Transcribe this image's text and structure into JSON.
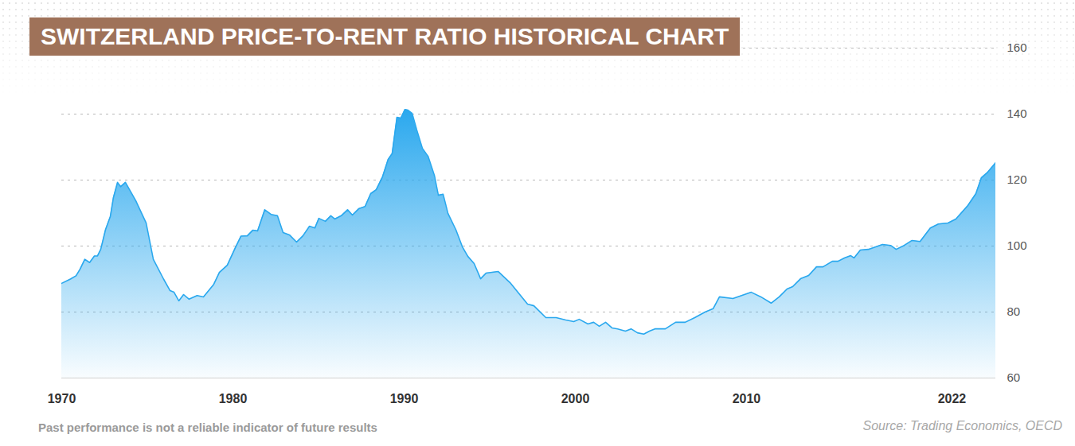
{
  "chart_data": {
    "type": "area",
    "title": "SWITZERLAND PRICE-TO-RENT RATIO HISTORICAL CHART",
    "caption": "Past performance is not a reliable indicator of future results",
    "source": "Source: Trading Economics, OECD",
    "color": "#2aa8ee",
    "grid": true,
    "xlim": [
      1970,
      2024.56
    ],
    "xticks": [
      1970,
      1980,
      1990,
      2000,
      2010,
      2022
    ],
    "ylim": [
      60,
      160
    ],
    "yticks": [
      60,
      80,
      100,
      120,
      140,
      160
    ],
    "x": [
      1970.0,
      1970.51,
      1970.84,
      1971.07,
      1971.35,
      1971.63,
      1971.91,
      1972.09,
      1972.28,
      1972.56,
      1972.84,
      1973.02,
      1973.26,
      1973.44,
      1973.72,
      1974.33,
      1974.93,
      1975.35,
      1975.95,
      1976.33,
      1976.56,
      1976.84,
      1977.12,
      1977.44,
      1977.91,
      1978.28,
      1978.88,
      1979.21,
      1979.67,
      1980.14,
      1980.47,
      1980.84,
      1981.16,
      1981.44,
      1981.86,
      1982.23,
      1982.6,
      1982.93,
      1983.3,
      1983.72,
      1984.09,
      1984.47,
      1984.79,
      1985.02,
      1985.4,
      1985.72,
      1985.95,
      1986.33,
      1986.7,
      1986.98,
      1987.35,
      1987.72,
      1988.05,
      1988.37,
      1988.74,
      1989.07,
      1989.3,
      1989.58,
      1989.81,
      1990.05,
      1990.23,
      1990.47,
      1990.74,
      1991.07,
      1991.4,
      1991.77,
      1992.0,
      1992.28,
      1992.56,
      1993.02,
      1993.4,
      1993.72,
      1994.09,
      1994.47,
      1994.79,
      1995.49,
      1996.19,
      1997.21,
      1997.58,
      1998.28,
      1998.88,
      1999.44,
      1999.91,
      2000.23,
      2000.74,
      2001.07,
      2001.4,
      2001.77,
      2002.14,
      2002.47,
      2002.93,
      2003.26,
      2003.63,
      2004.0,
      2004.33,
      2004.65,
      2005.26,
      2005.86,
      2006.42,
      2006.98,
      2007.58,
      2008.05,
      2008.42,
      2009.21,
      2010.28,
      2010.84,
      2011.44,
      2011.91,
      2012.37,
      2012.7,
      2013.16,
      2013.63,
      2014.09,
      2014.47,
      2015.02,
      2015.35,
      2015.72,
      2016.09,
      2016.28,
      2016.65,
      2017.12,
      2017.58,
      2017.95,
      2018.42,
      2018.74,
      2019.21,
      2019.67,
      2020.14,
      2020.74,
      2021.21,
      2021.77,
      2022.23,
      2022.93,
      2023.4,
      2023.72,
      2024.09,
      2024.56
    ],
    "values": [
      88.7,
      90,
      91,
      93,
      96,
      95,
      97,
      97,
      99,
      105,
      109,
      114.7,
      119.3,
      118,
      119.3,
      113.7,
      107,
      96,
      90,
      86.5,
      86,
      83.4,
      85.3,
      83.9,
      85,
      84.6,
      88.4,
      92,
      94.2,
      99.5,
      103,
      103.1,
      104.8,
      104.6,
      111,
      109.6,
      109.2,
      104.1,
      103.4,
      101.2,
      103.1,
      106,
      105.5,
      108.4,
      107.5,
      109.2,
      108.2,
      109.2,
      111,
      109.4,
      111.3,
      112,
      115.9,
      117.1,
      121,
      126.3,
      128,
      139,
      138.8,
      141.4,
      141.2,
      140.2,
      135.2,
      129.6,
      127.2,
      121.4,
      115.4,
      115.7,
      109.9,
      105,
      99.8,
      96.9,
      94.7,
      90.1,
      91.8,
      92.3,
      88.9,
      82.4,
      81.9,
      78.3,
      78.3,
      77.6,
      77.1,
      77.8,
      76.4,
      76.9,
      75.7,
      76.9,
      75.2,
      74.9,
      74.2,
      74.9,
      73.7,
      73.3,
      74.2,
      74.9,
      74.9,
      76.9,
      76.9,
      78.3,
      80,
      81,
      84.6,
      84.1,
      86,
      84.6,
      82.7,
      84.6,
      87,
      87.7,
      90.1,
      91.1,
      93.7,
      93.7,
      95.4,
      95.4,
      96.4,
      97.1,
      96.4,
      98.8,
      99,
      99.8,
      100.5,
      100.2,
      99,
      100.2,
      101.7,
      101.4,
      105.5,
      106.7,
      107,
      108.2,
      112.3,
      115.9,
      120.7,
      122.4,
      125.3
    ]
  }
}
